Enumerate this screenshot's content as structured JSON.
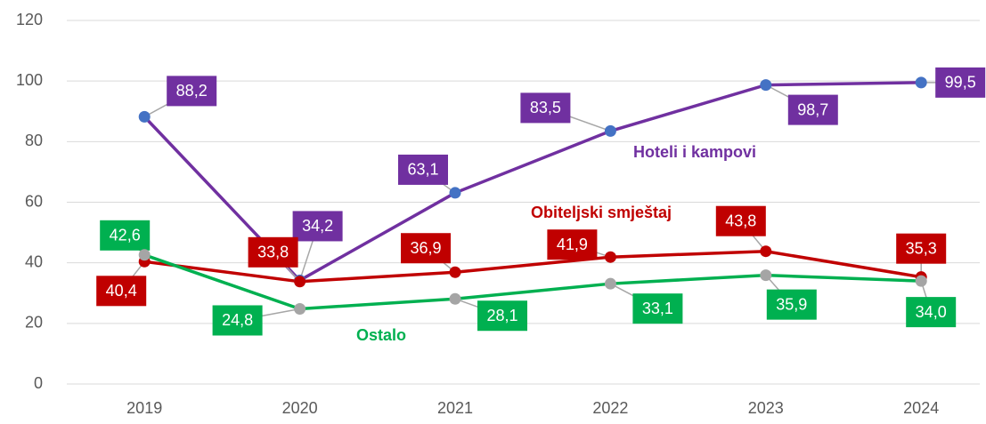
{
  "chart_data": {
    "type": "line",
    "categories": [
      "2019",
      "2020",
      "2021",
      "2022",
      "2023",
      "2024"
    ],
    "ylim": [
      0,
      120
    ],
    "yticks": [
      0,
      20,
      40,
      60,
      80,
      100,
      120
    ],
    "grid": true,
    "series": [
      {
        "name": "Hoteli i kampovi",
        "color": "#7030a0",
        "marker_color": "#4472c4",
        "values": [
          88.2,
          34.2,
          63.1,
          83.5,
          98.7,
          99.5
        ],
        "value_labels": [
          "88,2",
          "34,2",
          "63,1",
          "83,5",
          "98,7",
          "99,5"
        ]
      },
      {
        "name": "Obiteljski smještaj",
        "color": "#c00000",
        "marker_color": "#c00000",
        "values": [
          40.4,
          33.8,
          36.9,
          41.9,
          43.8,
          35.3
        ],
        "value_labels": [
          "40,4",
          "33,8",
          "36,9",
          "41,9",
          "43,8",
          "35,3"
        ]
      },
      {
        "name": "Ostalo",
        "color": "#00b050",
        "marker_color": "#a5a5a5",
        "values": [
          42.6,
          24.8,
          28.1,
          33.1,
          35.9,
          34.0
        ],
        "value_labels": [
          "42,6",
          "24,8",
          "28,1",
          "33,1",
          "35,9",
          "34,0"
        ]
      }
    ]
  }
}
